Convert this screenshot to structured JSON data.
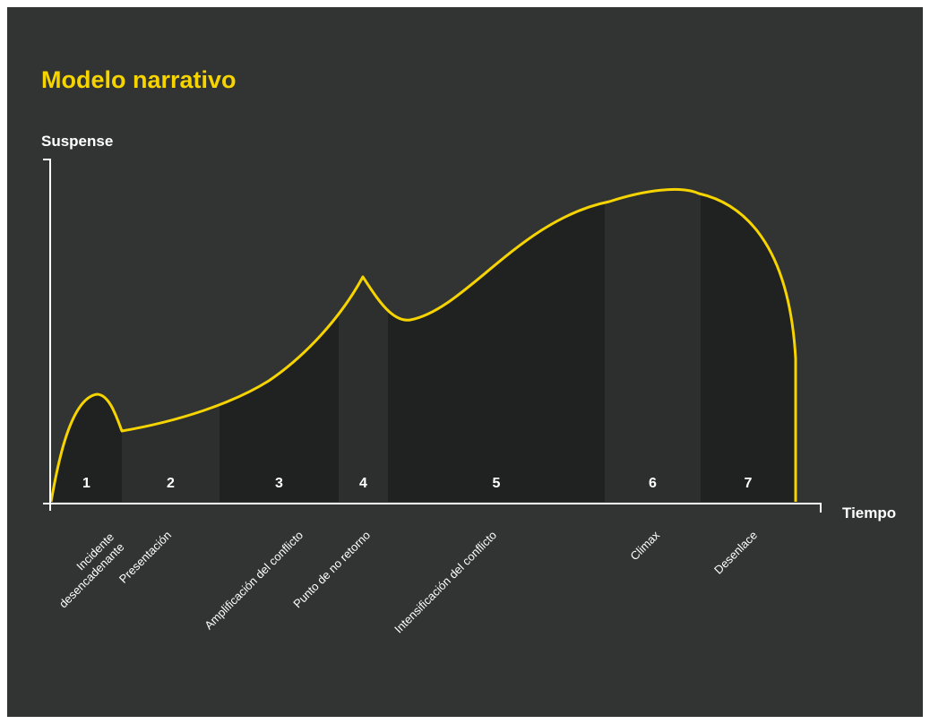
{
  "title": "Modelo narrativo",
  "y_axis_label": "Suspense",
  "x_axis_label": "Tiempo",
  "colors": {
    "background": "#323333",
    "band_dark": "#202121",
    "band_light": "#2d2e2e",
    "curve": "#f5d400",
    "text": "#ffffff",
    "title": "#f5d400"
  },
  "stages": [
    {
      "number": "1",
      "name": "Incidente\ndesencadenante"
    },
    {
      "number": "2",
      "name": "Presentación"
    },
    {
      "number": "3",
      "name": "Amplificación del conflicto"
    },
    {
      "number": "4",
      "name": "Punto de no retorno"
    },
    {
      "number": "5",
      "name": "Intensificación del conflicto"
    },
    {
      "number": "6",
      "name": "Climax"
    },
    {
      "number": "7",
      "name": "Desenlace"
    }
  ]
}
